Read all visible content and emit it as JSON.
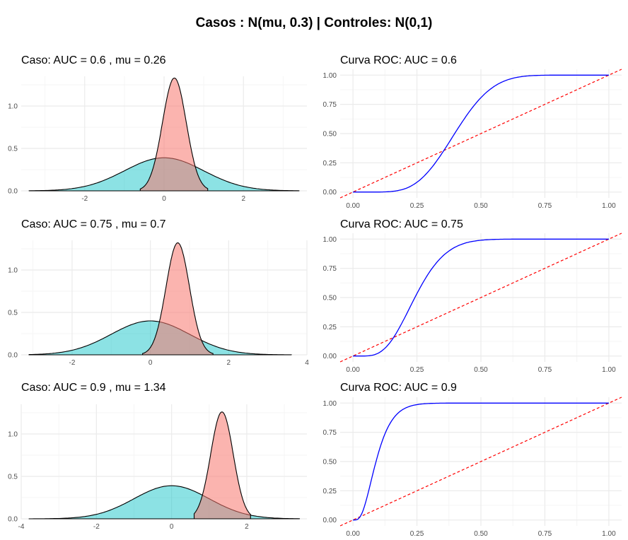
{
  "title": "Casos : N(mu, 0.3) | Controles: N(0,1)",
  "colors": {
    "caso": "#F8766D",
    "control": "#00BFC4",
    "roc": "#0000FF",
    "diagonal": "#FF0000",
    "grid_major": "#EBEBEB",
    "grid_minor": "#F5F5F5"
  },
  "chart_data": [
    {
      "type": "area",
      "title": "Caso: AUC =  0.6 , mu =  0.26",
      "mu": 0.26,
      "sd_caso": 0.3,
      "sd_control": 1,
      "xlim": [
        -3.6,
        3.6
      ],
      "ylim": [
        0,
        1.35
      ],
      "x_ticks": [
        -2,
        0,
        2
      ],
      "x_tick_labels": [
        "-2",
        "0",
        "2"
      ],
      "y_ticks": [
        0,
        0.5,
        1
      ],
      "y_tick_labels": [
        "0.0",
        "0.5",
        "1.0"
      ],
      "series": [
        {
          "peak": 1.33,
          "x_range": [
            -0.6,
            1.1
          ]
        },
        {
          "peak": 0.39,
          "x_range": [
            -3.4,
            3.4
          ]
        }
      ]
    },
    {
      "type": "line",
      "title": "Curva ROC: AUC =  0.6",
      "auc": 0.6,
      "mu": 0.26,
      "xlim": [
        -0.05,
        1.05
      ],
      "ylim": [
        -0.05,
        1.05
      ],
      "x_ticks": [
        0,
        0.25,
        0.5,
        0.75,
        1
      ],
      "x_tick_labels": [
        "0.00",
        "0.25",
        "0.50",
        "0.75",
        "1.00"
      ],
      "y_ticks": [
        0,
        0.25,
        0.5,
        0.75,
        1
      ],
      "y_tick_labels": [
        "0.00",
        "0.25",
        "0.50",
        "0.75",
        "1.00"
      ]
    },
    {
      "type": "area",
      "title": "Caso: AUC =  0.75 , mu =  0.7",
      "mu": 0.7,
      "sd_caso": 0.3,
      "sd_control": 1,
      "xlim": [
        -3.3,
        4.0
      ],
      "ylim": [
        0,
        1.35
      ],
      "x_ticks": [
        -2,
        0,
        2,
        4
      ],
      "x_tick_labels": [
        "-2",
        "0",
        "2",
        "4"
      ],
      "y_ticks": [
        0,
        0.5,
        1
      ],
      "y_tick_labels": [
        "0.0",
        "0.5",
        "1.0"
      ],
      "series": [
        {
          "peak": 1.32,
          "x_range": [
            -0.2,
            1.6
          ]
        },
        {
          "peak": 0.4,
          "x_range": [
            -3.1,
            3.6
          ]
        }
      ]
    },
    {
      "type": "line",
      "title": "Curva ROC: AUC =  0.75",
      "auc": 0.75,
      "mu": 0.7,
      "xlim": [
        -0.05,
        1.05
      ],
      "ylim": [
        -0.05,
        1.05
      ],
      "x_ticks": [
        0,
        0.25,
        0.5,
        0.75,
        1
      ],
      "x_tick_labels": [
        "0.00",
        "0.25",
        "0.50",
        "0.75",
        "1.00"
      ],
      "y_ticks": [
        0,
        0.25,
        0.5,
        0.75,
        1
      ],
      "y_tick_labels": [
        "0.00",
        "0.25",
        "0.50",
        "0.75",
        "1.00"
      ]
    },
    {
      "type": "area",
      "title": "Caso: AUC =  0.9 , mu =  1.34",
      "mu": 1.34,
      "sd_caso": 0.3,
      "sd_control": 1,
      "xlim": [
        -4.0,
        3.6
      ],
      "ylim": [
        0,
        1.35
      ],
      "x_ticks": [
        -4,
        -2,
        0,
        2
      ],
      "x_tick_labels": [
        "-4",
        "-2",
        "0",
        "2"
      ],
      "y_ticks": [
        0,
        0.5,
        1
      ],
      "y_tick_labels": [
        "0.0",
        "0.5",
        "1.0"
      ],
      "series": [
        {
          "peak": 1.26,
          "x_range": [
            0.6,
            2.1
          ]
        },
        {
          "peak": 0.39,
          "x_range": [
            -3.8,
            3.4
          ]
        }
      ]
    },
    {
      "type": "line",
      "title": "Curva ROC: AUC =  0.9",
      "auc": 0.9,
      "mu": 1.34,
      "xlim": [
        -0.05,
        1.05
      ],
      "ylim": [
        -0.05,
        1.05
      ],
      "x_ticks": [
        0,
        0.25,
        0.5,
        0.75,
        1
      ],
      "x_tick_labels": [
        "0.00",
        "0.25",
        "0.50",
        "0.75",
        "1.00"
      ],
      "y_ticks": [
        0,
        0.25,
        0.5,
        0.75,
        1
      ],
      "y_tick_labels": [
        "0.00",
        "0.25",
        "0.50",
        "0.75",
        "1.00"
      ]
    }
  ]
}
